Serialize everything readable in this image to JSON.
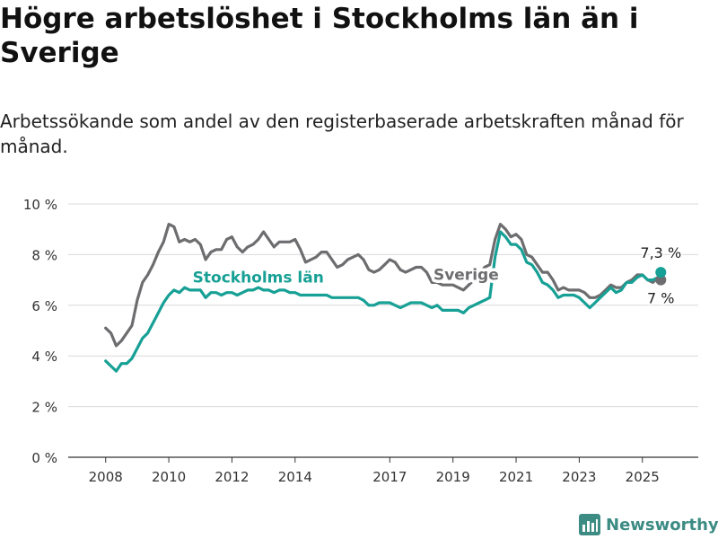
{
  "title": "Högre arbetslöshet i Stockholms län än i Sverige",
  "subtitle": "Arbetssökande som andel av den registerbaserade arbetskraften månad för månad.",
  "brand": {
    "name": "Newsworthy",
    "icon": "newsworthy-bar-chart-logo-icon"
  },
  "colors": {
    "sverige": "#6d6d70",
    "stockholm": "#17a095",
    "grid": "#d9d9d9",
    "axis": "#333333",
    "brand": "#3c8c84"
  },
  "chart_data": {
    "type": "line",
    "title": "Högre arbetslöshet i Stockholms län än i Sverige",
    "subtitle": "Arbetssökande som andel av den registerbaserade arbetskraften månad för månad.",
    "xlabel": "",
    "ylabel": "",
    "xlim": [
      "2007-09",
      "2025-12"
    ],
    "ylim": [
      0,
      10
    ],
    "grid": true,
    "y_ticks": [
      {
        "value": 0,
        "label": "0 %"
      },
      {
        "value": 2,
        "label": "2 %"
      },
      {
        "value": 4,
        "label": "4 %"
      },
      {
        "value": 6,
        "label": "6 %"
      },
      {
        "value": 8,
        "label": "8 %"
      },
      {
        "value": 10,
        "label": "10 %"
      }
    ],
    "x_ticks": [
      {
        "value": "2008-01",
        "label": "2008"
      },
      {
        "value": "2010-01",
        "label": "2010"
      },
      {
        "value": "2012-01",
        "label": "2012"
      },
      {
        "value": "2014-01",
        "label": "2014"
      },
      {
        "value": "2017-01",
        "label": "2017"
      },
      {
        "value": "2019-01",
        "label": "2019"
      },
      {
        "value": "2021-01",
        "label": "2021"
      },
      {
        "value": "2023-01",
        "label": "2023"
      },
      {
        "value": "2025-01",
        "label": "2025"
      }
    ],
    "series": [
      {
        "name": "Sverige",
        "label_x": "2019-06",
        "label_y": 7.0,
        "end_label": "7 %",
        "points": [
          [
            "2008-01",
            5.1
          ],
          [
            "2008-03",
            4.9
          ],
          [
            "2008-05",
            4.4
          ],
          [
            "2008-07",
            4.6
          ],
          [
            "2008-09",
            4.9
          ],
          [
            "2008-11",
            5.2
          ],
          [
            "2009-01",
            6.2
          ],
          [
            "2009-03",
            6.9
          ],
          [
            "2009-05",
            7.2
          ],
          [
            "2009-07",
            7.6
          ],
          [
            "2009-09",
            8.1
          ],
          [
            "2009-11",
            8.5
          ],
          [
            "2010-01",
            9.2
          ],
          [
            "2010-03",
            9.1
          ],
          [
            "2010-05",
            8.5
          ],
          [
            "2010-07",
            8.6
          ],
          [
            "2010-09",
            8.5
          ],
          [
            "2010-11",
            8.6
          ],
          [
            "2011-01",
            8.4
          ],
          [
            "2011-03",
            7.8
          ],
          [
            "2011-05",
            8.1
          ],
          [
            "2011-07",
            8.2
          ],
          [
            "2011-09",
            8.2
          ],
          [
            "2011-11",
            8.6
          ],
          [
            "2012-01",
            8.7
          ],
          [
            "2012-03",
            8.3
          ],
          [
            "2012-05",
            8.1
          ],
          [
            "2012-07",
            8.3
          ],
          [
            "2012-09",
            8.4
          ],
          [
            "2012-11",
            8.6
          ],
          [
            "2013-01",
            8.9
          ],
          [
            "2013-03",
            8.6
          ],
          [
            "2013-05",
            8.3
          ],
          [
            "2013-07",
            8.5
          ],
          [
            "2013-09",
            8.5
          ],
          [
            "2013-11",
            8.5
          ],
          [
            "2014-01",
            8.6
          ],
          [
            "2014-03",
            8.2
          ],
          [
            "2014-05",
            7.7
          ],
          [
            "2014-07",
            7.8
          ],
          [
            "2014-09",
            7.9
          ],
          [
            "2014-11",
            8.1
          ],
          [
            "2015-01",
            8.1
          ],
          [
            "2015-03",
            7.8
          ],
          [
            "2015-05",
            7.5
          ],
          [
            "2015-07",
            7.6
          ],
          [
            "2015-09",
            7.8
          ],
          [
            "2015-11",
            7.9
          ],
          [
            "2016-01",
            8.0
          ],
          [
            "2016-03",
            7.8
          ],
          [
            "2016-05",
            7.4
          ],
          [
            "2016-07",
            7.3
          ],
          [
            "2016-09",
            7.4
          ],
          [
            "2016-11",
            7.6
          ],
          [
            "2017-01",
            7.8
          ],
          [
            "2017-03",
            7.7
          ],
          [
            "2017-05",
            7.4
          ],
          [
            "2017-07",
            7.3
          ],
          [
            "2017-09",
            7.4
          ],
          [
            "2017-11",
            7.5
          ],
          [
            "2018-01",
            7.5
          ],
          [
            "2018-03",
            7.3
          ],
          [
            "2018-05",
            6.9
          ],
          [
            "2018-07",
            6.9
          ],
          [
            "2018-09",
            6.8
          ],
          [
            "2018-11",
            6.8
          ],
          [
            "2019-01",
            6.8
          ],
          [
            "2019-03",
            6.7
          ],
          [
            "2019-05",
            6.6
          ],
          [
            "2019-07",
            6.8
          ],
          [
            "2019-09",
            7.0
          ],
          [
            "2019-11",
            7.2
          ],
          [
            "2020-01",
            7.5
          ],
          [
            "2020-03",
            7.6
          ],
          [
            "2020-05",
            8.6
          ],
          [
            "2020-07",
            9.2
          ],
          [
            "2020-09",
            9.0
          ],
          [
            "2020-11",
            8.7
          ],
          [
            "2021-01",
            8.8
          ],
          [
            "2021-03",
            8.6
          ],
          [
            "2021-05",
            8.0
          ],
          [
            "2021-07",
            7.9
          ],
          [
            "2021-09",
            7.6
          ],
          [
            "2021-11",
            7.3
          ],
          [
            "2022-01",
            7.3
          ],
          [
            "2022-03",
            7.0
          ],
          [
            "2022-05",
            6.6
          ],
          [
            "2022-07",
            6.7
          ],
          [
            "2022-09",
            6.6
          ],
          [
            "2022-11",
            6.6
          ],
          [
            "2023-01",
            6.6
          ],
          [
            "2023-03",
            6.5
          ],
          [
            "2023-05",
            6.3
          ],
          [
            "2023-07",
            6.3
          ],
          [
            "2023-09",
            6.4
          ],
          [
            "2023-11",
            6.6
          ],
          [
            "2024-01",
            6.8
          ],
          [
            "2024-03",
            6.7
          ],
          [
            "2024-05",
            6.7
          ],
          [
            "2024-07",
            6.9
          ],
          [
            "2024-09",
            7.0
          ],
          [
            "2024-11",
            7.2
          ],
          [
            "2025-01",
            7.2
          ],
          [
            "2025-03",
            7.0
          ],
          [
            "2025-05",
            6.9
          ],
          [
            "2025-07",
            7.1
          ],
          [
            "2025-08",
            7.0
          ]
        ]
      },
      {
        "name": "Stockholms län",
        "label_x": "2012-11",
        "label_y": 6.9,
        "end_label": "7,3 %",
        "points": [
          [
            "2008-01",
            3.8
          ],
          [
            "2008-03",
            3.6
          ],
          [
            "2008-05",
            3.4
          ],
          [
            "2008-07",
            3.7
          ],
          [
            "2008-09",
            3.7
          ],
          [
            "2008-11",
            3.9
          ],
          [
            "2009-01",
            4.3
          ],
          [
            "2009-03",
            4.7
          ],
          [
            "2009-05",
            4.9
          ],
          [
            "2009-07",
            5.3
          ],
          [
            "2009-09",
            5.7
          ],
          [
            "2009-11",
            6.1
          ],
          [
            "2010-01",
            6.4
          ],
          [
            "2010-03",
            6.6
          ],
          [
            "2010-05",
            6.5
          ],
          [
            "2010-07",
            6.7
          ],
          [
            "2010-09",
            6.6
          ],
          [
            "2010-11",
            6.6
          ],
          [
            "2011-01",
            6.6
          ],
          [
            "2011-03",
            6.3
          ],
          [
            "2011-05",
            6.5
          ],
          [
            "2011-07",
            6.5
          ],
          [
            "2011-09",
            6.4
          ],
          [
            "2011-11",
            6.5
          ],
          [
            "2012-01",
            6.5
          ],
          [
            "2012-03",
            6.4
          ],
          [
            "2012-05",
            6.5
          ],
          [
            "2012-07",
            6.6
          ],
          [
            "2012-09",
            6.6
          ],
          [
            "2012-11",
            6.7
          ],
          [
            "2013-01",
            6.6
          ],
          [
            "2013-03",
            6.6
          ],
          [
            "2013-05",
            6.5
          ],
          [
            "2013-07",
            6.6
          ],
          [
            "2013-09",
            6.6
          ],
          [
            "2013-11",
            6.5
          ],
          [
            "2014-01",
            6.5
          ],
          [
            "2014-03",
            6.4
          ],
          [
            "2014-05",
            6.4
          ],
          [
            "2014-07",
            6.4
          ],
          [
            "2014-09",
            6.4
          ],
          [
            "2014-11",
            6.4
          ],
          [
            "2015-01",
            6.4
          ],
          [
            "2015-03",
            6.3
          ],
          [
            "2015-05",
            6.3
          ],
          [
            "2015-07",
            6.3
          ],
          [
            "2015-09",
            6.3
          ],
          [
            "2015-11",
            6.3
          ],
          [
            "2016-01",
            6.3
          ],
          [
            "2016-03",
            6.2
          ],
          [
            "2016-05",
            6.0
          ],
          [
            "2016-07",
            6.0
          ],
          [
            "2016-09",
            6.1
          ],
          [
            "2016-11",
            6.1
          ],
          [
            "2017-01",
            6.1
          ],
          [
            "2017-03",
            6.0
          ],
          [
            "2017-05",
            5.9
          ],
          [
            "2017-07",
            6.0
          ],
          [
            "2017-09",
            6.1
          ],
          [
            "2017-11",
            6.1
          ],
          [
            "2018-01",
            6.1
          ],
          [
            "2018-03",
            6.0
          ],
          [
            "2018-05",
            5.9
          ],
          [
            "2018-07",
            6.0
          ],
          [
            "2018-09",
            5.8
          ],
          [
            "2018-11",
            5.8
          ],
          [
            "2019-01",
            5.8
          ],
          [
            "2019-03",
            5.8
          ],
          [
            "2019-05",
            5.7
          ],
          [
            "2019-07",
            5.9
          ],
          [
            "2019-09",
            6.0
          ],
          [
            "2019-11",
            6.1
          ],
          [
            "2020-01",
            6.2
          ],
          [
            "2020-03",
            6.3
          ],
          [
            "2020-05",
            7.9
          ],
          [
            "2020-07",
            8.9
          ],
          [
            "2020-09",
            8.7
          ],
          [
            "2020-11",
            8.4
          ],
          [
            "2021-01",
            8.4
          ],
          [
            "2021-03",
            8.2
          ],
          [
            "2021-05",
            7.7
          ],
          [
            "2021-07",
            7.6
          ],
          [
            "2021-09",
            7.3
          ],
          [
            "2021-11",
            6.9
          ],
          [
            "2022-01",
            6.8
          ],
          [
            "2022-03",
            6.6
          ],
          [
            "2022-05",
            6.3
          ],
          [
            "2022-07",
            6.4
          ],
          [
            "2022-09",
            6.4
          ],
          [
            "2022-11",
            6.4
          ],
          [
            "2023-01",
            6.3
          ],
          [
            "2023-03",
            6.1
          ],
          [
            "2023-05",
            5.9
          ],
          [
            "2023-07",
            6.1
          ],
          [
            "2023-09",
            6.3
          ],
          [
            "2023-11",
            6.5
          ],
          [
            "2024-01",
            6.7
          ],
          [
            "2024-03",
            6.5
          ],
          [
            "2024-05",
            6.6
          ],
          [
            "2024-07",
            6.9
          ],
          [
            "2024-09",
            6.9
          ],
          [
            "2024-11",
            7.1
          ],
          [
            "2025-01",
            7.2
          ],
          [
            "2025-03",
            7.0
          ],
          [
            "2025-05",
            7.0
          ],
          [
            "2025-07",
            7.1
          ],
          [
            "2025-08",
            7.3
          ]
        ]
      }
    ]
  }
}
